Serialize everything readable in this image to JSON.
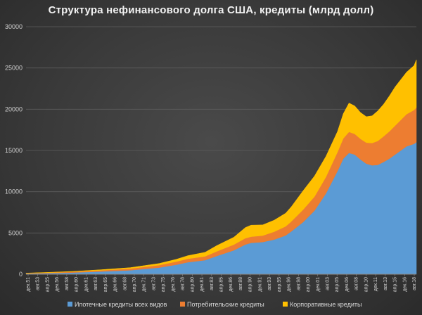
{
  "chart_data": {
    "type": "area",
    "stacked": true,
    "title": "Структура нефинансового долга США, кредиты (млрд долл)",
    "xlabel": "",
    "ylabel": "",
    "ylim": [
      0,
      30000
    ],
    "yticks": [
      0,
      5000,
      10000,
      15000,
      20000,
      25000,
      30000
    ],
    "grid": true,
    "legend_position": "bottom",
    "x_tick_labels": [
      "дек.51",
      "авг.53",
      "апр.55",
      "дек.56",
      "авг.58",
      "апр.60",
      "дек.61",
      "авг.63",
      "апр.65",
      "дек.66",
      "авг.68",
      "апр.70",
      "дек.71",
      "авг.73",
      "апр.75",
      "дек.76",
      "авг.78",
      "апр.80",
      "дек.81",
      "авг.83",
      "апр.85",
      "дек.86",
      "авг.88",
      "апр.90",
      "дек.91",
      "авг.93",
      "апр.95",
      "дек.96",
      "авг.98",
      "апр.00",
      "дек.01",
      "авг.03",
      "апр.05",
      "дек.06",
      "авг.08",
      "апр.10",
      "дек.11",
      "авг.13",
      "апр.15",
      "дек.16",
      "авг.18"
    ],
    "x": [
      1951.9,
      1955,
      1960,
      1965,
      1970,
      1975,
      1978,
      1980,
      1983,
      1985,
      1988,
      1990,
      1991,
      1993,
      1995,
      1997,
      1998,
      2000,
      2002,
      2004,
      2006,
      2007,
      2008,
      2009,
      2010,
      2011,
      2012,
      2013,
      2014,
      2015,
      2016,
      2017,
      2018,
      2019.3,
      2019.7
    ],
    "series": [
      {
        "name": "Ипотечные кредиты всех видов",
        "color": "#5b9bd5",
        "values": [
          80,
          120,
          200,
          330,
          480,
          800,
          1150,
          1450,
          1700,
          2200,
          2900,
          3600,
          3800,
          3900,
          4200,
          4700,
          5200,
          6300,
          7700,
          9800,
          12500,
          14000,
          14700,
          14500,
          13900,
          13400,
          13200,
          13250,
          13600,
          14000,
          14500,
          15000,
          15500,
          15800,
          16000
        ]
      },
      {
        "name": "Потребительские кредиты",
        "color": "#ed7d31",
        "values": [
          40,
          60,
          90,
          140,
          200,
          300,
          380,
          420,
          460,
          560,
          690,
          760,
          750,
          780,
          950,
          1100,
          1200,
          1500,
          1700,
          2000,
          2300,
          2450,
          2550,
          2500,
          2500,
          2550,
          2700,
          2900,
          3100,
          3300,
          3500,
          3700,
          3900,
          4100,
          4200
        ]
      },
      {
        "name": "Корпоративные кредиты",
        "color": "#ffc000",
        "values": [
          20,
          30,
          50,
          80,
          120,
          200,
          280,
          380,
          500,
          700,
          900,
          1300,
          1400,
          1300,
          1400,
          1600,
          1800,
          2300,
          2500,
          2500,
          2500,
          3000,
          3500,
          3400,
          3200,
          3150,
          3300,
          3650,
          3900,
          4300,
          4700,
          4900,
          5100,
          5400,
          5800
        ]
      }
    ]
  }
}
